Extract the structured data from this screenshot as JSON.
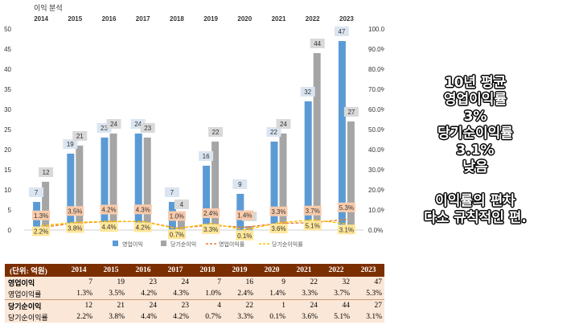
{
  "chart_data": {
    "type": "bar+line",
    "title": "이익 분석",
    "categories": [
      "2014",
      "2015",
      "2016",
      "2017",
      "2018",
      "2019",
      "2020",
      "2021",
      "2022",
      "2023"
    ],
    "series": [
      {
        "name": "영업이익",
        "kind": "bar",
        "axis": "left",
        "color": "#5b9bd5",
        "values": [
          7,
          19,
          23,
          24,
          7,
          16,
          9,
          22,
          32,
          47
        ]
      },
      {
        "name": "당기순이익",
        "kind": "bar",
        "axis": "left",
        "color": "#a5a5a5",
        "values": [
          12,
          21,
          24,
          23,
          4,
          22,
          1,
          24,
          44,
          27
        ]
      },
      {
        "name": "영업이익률",
        "kind": "line",
        "axis": "right",
        "color": "#ed7d31",
        "values": [
          1.3,
          3.5,
          4.2,
          4.3,
          1.0,
          2.4,
          1.4,
          3.3,
          3.7,
          5.3
        ]
      },
      {
        "name": "당기순이익률",
        "kind": "line",
        "axis": "right",
        "color": "#ffc000",
        "values": [
          2.2,
          3.8,
          4.4,
          4.2,
          0.7,
          3.3,
          0.1,
          3.6,
          5.1,
          3.1
        ]
      }
    ],
    "left_axis": {
      "ylim": [
        0,
        50
      ],
      "ticks": [
        "0",
        "5",
        "10",
        "15",
        "20",
        "25",
        "30",
        "35",
        "40",
        "45",
        "50"
      ]
    },
    "right_axis": {
      "ylim": [
        0,
        100
      ],
      "ticks": [
        "0.0%",
        "10.0%",
        "20.0%",
        "30.0%",
        "40.0%",
        "50.0%",
        "60.0%",
        "70.0%",
        "80.0%",
        "90.0%",
        "100.0%"
      ]
    },
    "legend_placement": "bottom"
  },
  "note": {
    "lines": [
      "10년 평균",
      "영업이익률",
      "3%",
      "당기순이익률",
      "3.1%",
      "낮음",
      "",
      "이익률의 편차",
      "다소 규칙적인 편."
    ]
  },
  "table": {
    "header_label": "(단위: 억원)",
    "years": [
      "2014",
      "2015",
      "2016",
      "2017",
      "2018",
      "2019",
      "2020",
      "2021",
      "2022",
      "2023"
    ],
    "rows": [
      {
        "label": "영업이익",
        "values": [
          "7",
          "19",
          "23",
          "24",
          "7",
          "16",
          "9",
          "22",
          "32",
          "47"
        ]
      },
      {
        "label": "영업이익률",
        "values": [
          "1.3%",
          "3.5%",
          "4.2%",
          "4.3%",
          "1.0%",
          "2.4%",
          "1.4%",
          "3.3%",
          "3.7%",
          "5.3%"
        ]
      },
      {
        "label": "당기순이익",
        "values": [
          "12",
          "21",
          "24",
          "23",
          "4",
          "22",
          "1",
          "24",
          "44",
          "27"
        ]
      },
      {
        "label": "당기순이익률",
        "values": [
          "2.2%",
          "3.8%",
          "4.4%",
          "4.2%",
          "0.7%",
          "3.3%",
          "0.1%",
          "3.6%",
          "5.1%",
          "3.1%"
        ]
      }
    ]
  }
}
